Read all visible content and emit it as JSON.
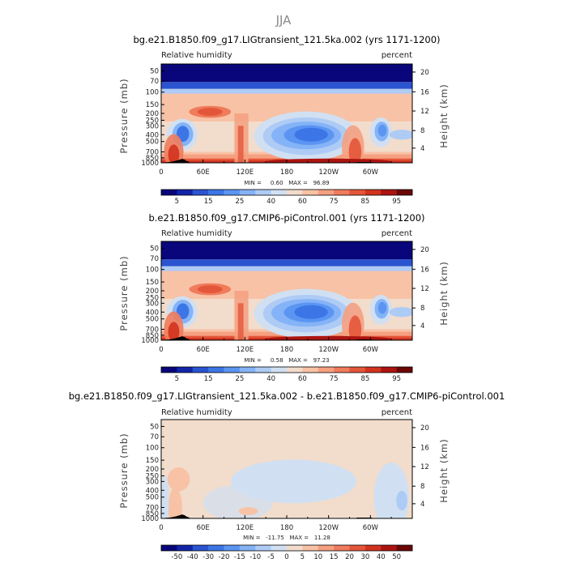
{
  "figure": {
    "title": "JJA"
  },
  "chart_data": [
    {
      "type": "heatmap",
      "title": "bg.e21.B1850.f09_g17.LIGtransient_121.5ka.002 (yrs 1171-1200)",
      "left_string": "Relative humidity",
      "right_string": "percent",
      "ylabel": "Pressure (mb)",
      "right_ylabel": "Height (km)",
      "x_ticks": [
        "0",
        "60E",
        "120E",
        "180",
        "120W",
        "60W"
      ],
      "y_ticks": [
        "50",
        "70",
        "100",
        "150",
        "200",
        "250",
        "300",
        "400",
        "500",
        "700",
        "850",
        "1000"
      ],
      "height_ticks": [
        "20",
        "16",
        "12",
        "8",
        "4"
      ],
      "min_text": "MIN =     0.60   MAX =   96.89",
      "min": 0.6,
      "max": 96.89,
      "colorbar_ticks": [
        "5",
        "15",
        "25",
        "40",
        "60",
        "75",
        "85",
        "95"
      ],
      "colorbar_colors": [
        "#08067a",
        "#1224a8",
        "#2a54d0",
        "#3c76e6",
        "#5b95f2",
        "#85b3f7",
        "#aecbf5",
        "#d0e0f2",
        "#f2dccc",
        "#f8c2a6",
        "#f5a080",
        "#ef7c5c",
        "#e4563a",
        "#d2331e",
        "#ac1410",
        "#6a0605"
      ]
    },
    {
      "type": "heatmap",
      "title": "b.e21.B1850.f09_g17.CMIP6-piControl.001 (yrs 1171-1200)",
      "left_string": "Relative humidity",
      "right_string": "percent",
      "ylabel": "Pressure (mb)",
      "right_ylabel": "Height (km)",
      "x_ticks": [
        "0",
        "60E",
        "120E",
        "180",
        "120W",
        "60W"
      ],
      "y_ticks": [
        "50",
        "70",
        "100",
        "150",
        "200",
        "250",
        "300",
        "400",
        "500",
        "700",
        "850",
        "1000"
      ],
      "height_ticks": [
        "20",
        "16",
        "12",
        "8",
        "4"
      ],
      "min_text": "MIN =     0.58   MAX =   97.23",
      "min": 0.58,
      "max": 97.23,
      "colorbar_ticks": [
        "5",
        "15",
        "25",
        "40",
        "60",
        "75",
        "85",
        "95"
      ],
      "colorbar_colors": [
        "#08067a",
        "#1224a8",
        "#2a54d0",
        "#3c76e6",
        "#5b95f2",
        "#85b3f7",
        "#aecbf5",
        "#d0e0f2",
        "#f2dccc",
        "#f8c2a6",
        "#f5a080",
        "#ef7c5c",
        "#e4563a",
        "#d2331e",
        "#ac1410",
        "#6a0605"
      ]
    },
    {
      "type": "heatmap",
      "title": "bg.e21.B1850.f09_g17.LIGtransient_121.5ka.002 - b.e21.B1850.f09_g17.CMIP6-piControl.001",
      "left_string": "Relative humidity",
      "right_string": "percent",
      "ylabel": "Pressure (mb)",
      "right_ylabel": "Height (km)",
      "x_ticks": [
        "0",
        "60E",
        "120E",
        "180",
        "120W",
        "60W"
      ],
      "y_ticks": [
        "50",
        "70",
        "100",
        "150",
        "200",
        "250",
        "300",
        "400",
        "500",
        "700",
        "850",
        "1000"
      ],
      "height_ticks": [
        "20",
        "16",
        "12",
        "8",
        "4"
      ],
      "min_text": "MIN =   -11.75   MAX =   11.28",
      "min": -11.75,
      "max": 11.28,
      "colorbar_ticks": [
        "-50",
        "-40",
        "-30",
        "-20",
        "-15",
        "-10",
        "-5",
        "0",
        "5",
        "10",
        "15",
        "20",
        "30",
        "40",
        "50"
      ],
      "colorbar_colors": [
        "#08067a",
        "#1224a8",
        "#2a54d0",
        "#3c76e6",
        "#5b95f2",
        "#85b3f7",
        "#aecbf5",
        "#d0e0f2",
        "#f2dccc",
        "#f8c2a6",
        "#f5a080",
        "#ef7c5c",
        "#e4563a",
        "#d2331e",
        "#ac1410",
        "#6a0605"
      ]
    }
  ]
}
